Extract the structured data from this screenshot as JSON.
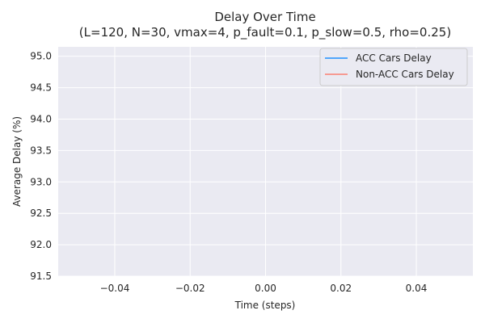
{
  "chart_data": {
    "type": "line",
    "title": "Delay Over Time",
    "subtitle": "(L=120, N=30, vmax=4, p_fault=0.1, p_slow=0.5, rho=0.25)",
    "xlabel": "Time (steps)",
    "ylabel": "Average Delay (%)",
    "xlim": [
      -0.055,
      0.055
    ],
    "ylim": [
      91.5,
      95.15
    ],
    "x_ticks": [
      -0.04,
      -0.02,
      0.0,
      0.02,
      0.04
    ],
    "x_tick_labels": [
      "−0.04",
      "−0.02",
      "0.00",
      "0.02",
      "0.04"
    ],
    "y_ticks": [
      91.5,
      92.0,
      92.5,
      93.0,
      93.5,
      94.0,
      94.5,
      95.0
    ],
    "y_tick_labels": [
      "91.5",
      "92.0",
      "92.5",
      "93.0",
      "93.5",
      "94.0",
      "94.5",
      "95.0"
    ],
    "grid": true,
    "legend_position": "top-right",
    "series": [
      {
        "name": "ACC Cars Delay",
        "color": "#1e90ff",
        "x": [],
        "y": []
      },
      {
        "name": "Non-ACC Cars Delay",
        "color": "#fa8072",
        "x": [],
        "y": []
      }
    ],
    "plot_background": "#eaeaf2"
  }
}
